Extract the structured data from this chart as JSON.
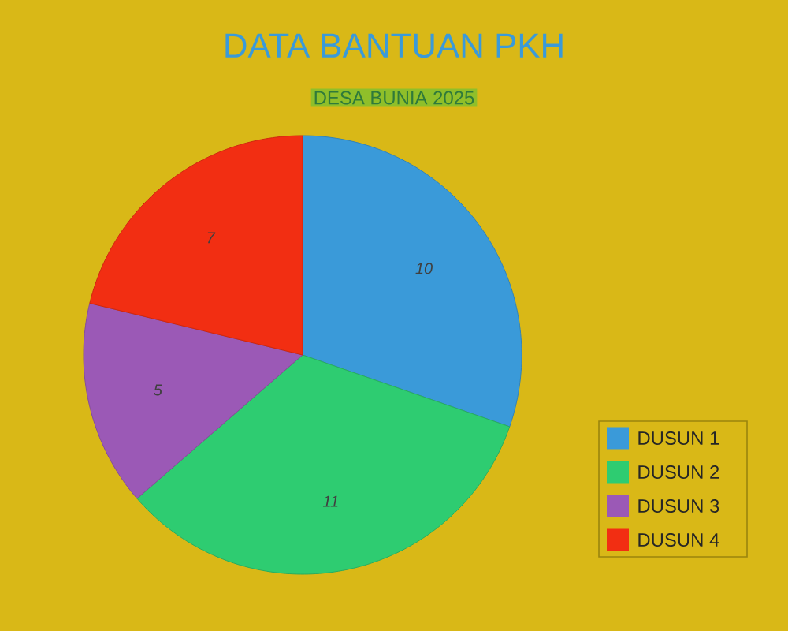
{
  "chart_data": {
    "type": "pie",
    "title": "DATA BANTUAN PKH",
    "subtitle": "DESA BUNIA 2025",
    "categories": [
      "DUSUN 1",
      "DUSUN 2",
      "DUSUN 3",
      "DUSUN 4"
    ],
    "values": [
      10,
      11,
      5,
      7
    ],
    "colors": [
      "#3a9ad9",
      "#2ecc71",
      "#9b59b6",
      "#f22e12"
    ],
    "data_labels": true,
    "legend": "right"
  }
}
